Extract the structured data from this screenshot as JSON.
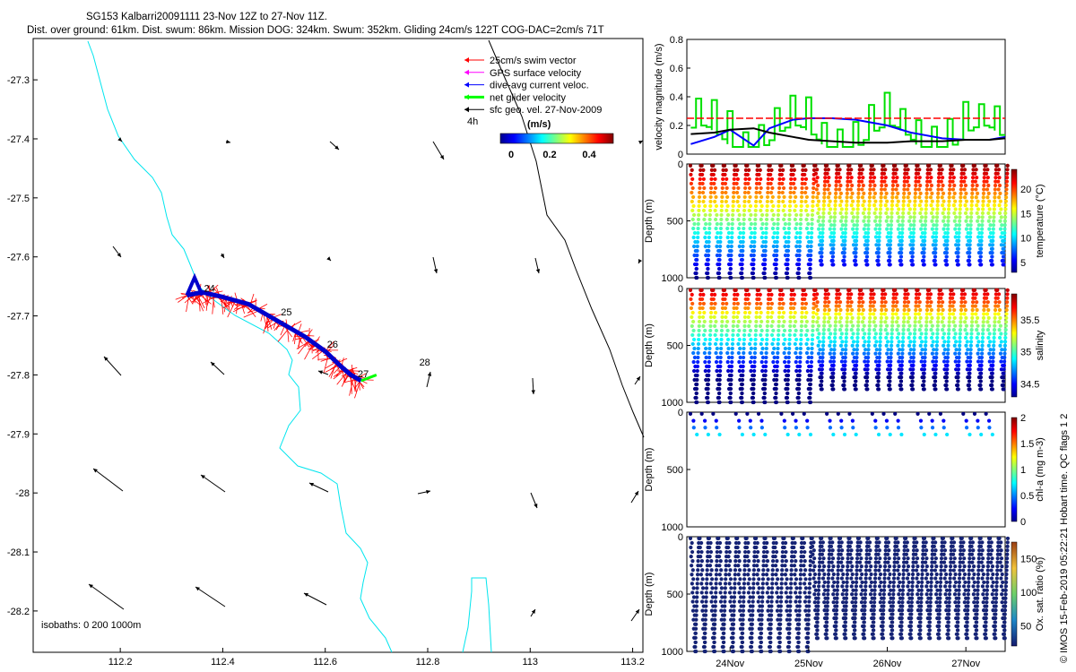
{
  "title": {
    "line1": "SG153 Kalbarri20091111 23-Nov 12Z to 27-Nov 11Z.",
    "line2": "Dist. over ground: 61km. Dist. swum: 86km. Mission DOG: 324km. Swum: 352km. Gliding 24cm/s 122T COG-DAC=2cm/s 71T"
  },
  "side_credit": "© IMOS 15-Feb-2019 05:22:21 Hobart time. QC flags 1  2",
  "map": {
    "xticks": [
      "112.2",
      "112.4",
      "112.6",
      "112.8",
      "113",
      "113.2"
    ],
    "yticks": [
      "-27.3",
      "-27.4",
      "-27.5",
      "-27.6",
      "-27.7",
      "-27.8",
      "-27.9",
      "-28",
      "-28.1",
      "-28.2"
    ],
    "xlim": [
      112.03,
      113.22
    ],
    "ylim": [
      -28.27,
      -27.23
    ],
    "legend": [
      {
        "label": "25cm/s swim vector",
        "color": "#ff0000"
      },
      {
        "label": "GPS surface velocity",
        "color": "#ff00ff"
      },
      {
        "label": "dive-avg current veloc.",
        "color": "#0000ff"
      },
      {
        "label": "net glider velocity",
        "color": "#00ff00"
      },
      {
        "label": "sfc geo. vel. 27-Nov-2009",
        "color": "#000000"
      }
    ],
    "legend_note": "4h",
    "colorbar_label": "(m/s)",
    "colorbar_ticks": [
      "0",
      "0.2",
      "0.4"
    ],
    "isobaths_label": "isobaths: 0   200  1000m",
    "day_labels": [
      "24",
      "25",
      "26",
      "27",
      "28"
    ],
    "colors": {
      "track": "#0000ff",
      "swim": "#ff0000",
      "isobath_0": "#00e5ee",
      "isobath_1000": "#000000",
      "net": "#00ff00"
    }
  },
  "panels": {
    "velocity": {
      "ylabel": "velocity magnitude (m/s)",
      "yticks": [
        "0",
        "0.2",
        "0.4",
        "0.6",
        "0.8"
      ]
    },
    "temperature": {
      "ylabel": "Depth (m)",
      "cbar_label": "temperature (°C)",
      "cbar_ticks": [
        "5",
        "10",
        "15",
        "20"
      ],
      "yticks": [
        "0",
        "500",
        "1000"
      ]
    },
    "salinity": {
      "ylabel": "Depth (m)",
      "cbar_label": "salinity",
      "cbar_ticks": [
        "34.5",
        "35",
        "35.5"
      ],
      "yticks": [
        "0",
        "500",
        "1000"
      ]
    },
    "chla": {
      "ylabel": "Depth (m)",
      "cbar_label": "chl-a (mg m-3)",
      "cbar_ticks": [
        "0",
        "0.5",
        "1",
        "1.5",
        "2"
      ],
      "yticks": [
        "0",
        "500",
        "1000"
      ]
    },
    "oxygen": {
      "ylabel": "Depth (m)",
      "cbar_label": "Ox. sat. ratio (%)",
      "cbar_ticks": [
        "50",
        "100",
        "150"
      ],
      "yticks": [
        "0",
        "500",
        "1000"
      ]
    },
    "xticks": [
      "24Nov",
      "25Nov",
      "26Nov",
      "27Nov"
    ]
  },
  "chart_data": [
    {
      "type": "scatter",
      "description_key": "map",
      "xlabel": "",
      "ylabel": "",
      "xlim": [
        112.03,
        113.22
      ],
      "ylim": [
        -28.27,
        -27.23
      ],
      "track": {
        "x": [
          112.33,
          112.36,
          112.4,
          112.45,
          112.5,
          112.56,
          112.6,
          112.63,
          112.65,
          112.67
        ],
        "y": [
          -27.665,
          -27.66,
          -27.668,
          -27.68,
          -27.705,
          -27.735,
          -27.76,
          -27.785,
          -27.8,
          -27.81
        ]
      },
      "day_markers": [
        {
          "label": "24",
          "x": 112.36,
          "y": -27.665
        },
        {
          "label": "25",
          "x": 112.51,
          "y": -27.705
        },
        {
          "label": "26",
          "x": 112.6,
          "y": -27.76
        },
        {
          "label": "27",
          "x": 112.66,
          "y": -27.81
        },
        {
          "label": "28",
          "x": 112.78,
          "y": -27.79
        }
      ]
    },
    {
      "type": "line",
      "description_key": "velocity",
      "xlim": [
        23.45,
        27.5
      ],
      "ylim": [
        0,
        0.8
      ],
      "ylabel": "velocity magnitude (m/s)",
      "series": [
        {
          "color": "#0000ff",
          "x": [
            23.5,
            23.8,
            24.0,
            24.3,
            24.5,
            24.8,
            25.0,
            25.3,
            25.6,
            26.0,
            26.3,
            26.7,
            27.0,
            27.3,
            27.5
          ],
          "values": [
            0.07,
            0.12,
            0.17,
            0.06,
            0.18,
            0.24,
            0.25,
            0.25,
            0.24,
            0.2,
            0.15,
            0.11,
            0.1,
            0.1,
            0.12
          ]
        },
        {
          "color": "#000000",
          "x": [
            23.5,
            23.8,
            24.0,
            24.3,
            24.5,
            24.8,
            25.0,
            25.3,
            25.6,
            26.0,
            26.3,
            26.7,
            27.0,
            27.3,
            27.5
          ],
          "values": [
            0.14,
            0.15,
            0.17,
            0.18,
            0.15,
            0.12,
            0.1,
            0.09,
            0.08,
            0.08,
            0.09,
            0.09,
            0.1,
            0.1,
            0.11
          ]
        },
        {
          "color": "#ff0000",
          "x": [
            23.45,
            27.5
          ],
          "values": [
            0.25,
            0.25
          ]
        }
      ]
    },
    {
      "type": "scatter",
      "description_key": "temperature",
      "ylim": [
        1000,
        0
      ],
      "xlim": [
        23.45,
        27.5
      ],
      "clim": [
        3,
        24
      ]
    },
    {
      "type": "scatter",
      "description_key": "salinity",
      "ylim": [
        1000,
        0
      ],
      "xlim": [
        23.45,
        27.5
      ],
      "clim": [
        34.3,
        35.9
      ]
    },
    {
      "type": "scatter",
      "description_key": "chla",
      "ylim": [
        1000,
        0
      ],
      "xlim": [
        23.45,
        27.5
      ],
      "clim": [
        0,
        2
      ]
    },
    {
      "type": "scatter",
      "description_key": "oxygen",
      "ylim": [
        1000,
        0
      ],
      "xlim": [
        23.45,
        27.5
      ],
      "clim": [
        20,
        175
      ]
    }
  ]
}
